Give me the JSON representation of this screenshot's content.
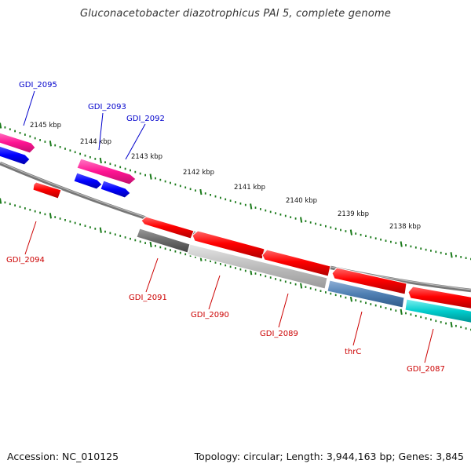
{
  "title": "Gluconacetobacter diazotrophicus PAl 5, complete genome",
  "footer": {
    "accession": "Accession: NC_010125",
    "summary": "Topology: circular; Length: 3,944,163 bp; Genes: 3,845"
  },
  "ruler": {
    "labels": [
      "2145 kbp",
      "2144 kbp",
      "2143 kbp",
      "2142 kbp",
      "2141 kbp",
      "2140 kbp",
      "2139 kbp",
      "2138 kbp"
    ]
  },
  "colors": {
    "forward_label": "#0000cc",
    "reverse_label": "#cc0000",
    "tick": "#1a7a1a",
    "backbone": "#777777"
  },
  "genes": {
    "forward": [
      {
        "name": "GDI_2095",
        "color": "#ff1493"
      },
      {
        "name": "GDI_2093",
        "color": "#ff1493"
      },
      {
        "name": "GDI_2092",
        "color": "#0000ff"
      }
    ],
    "reverse": [
      {
        "name": "GDI_2094",
        "color": "#ff0000"
      },
      {
        "name": "GDI_2091",
        "color": "#ff0000"
      },
      {
        "name": "GDI_2090",
        "color": "#ff0000"
      },
      {
        "name": "GDI_2089",
        "color": "#ff0000"
      },
      {
        "name": "thrC",
        "color": "#ff0000"
      },
      {
        "name": "GDI_2087",
        "color": "#ff0000"
      }
    ]
  }
}
